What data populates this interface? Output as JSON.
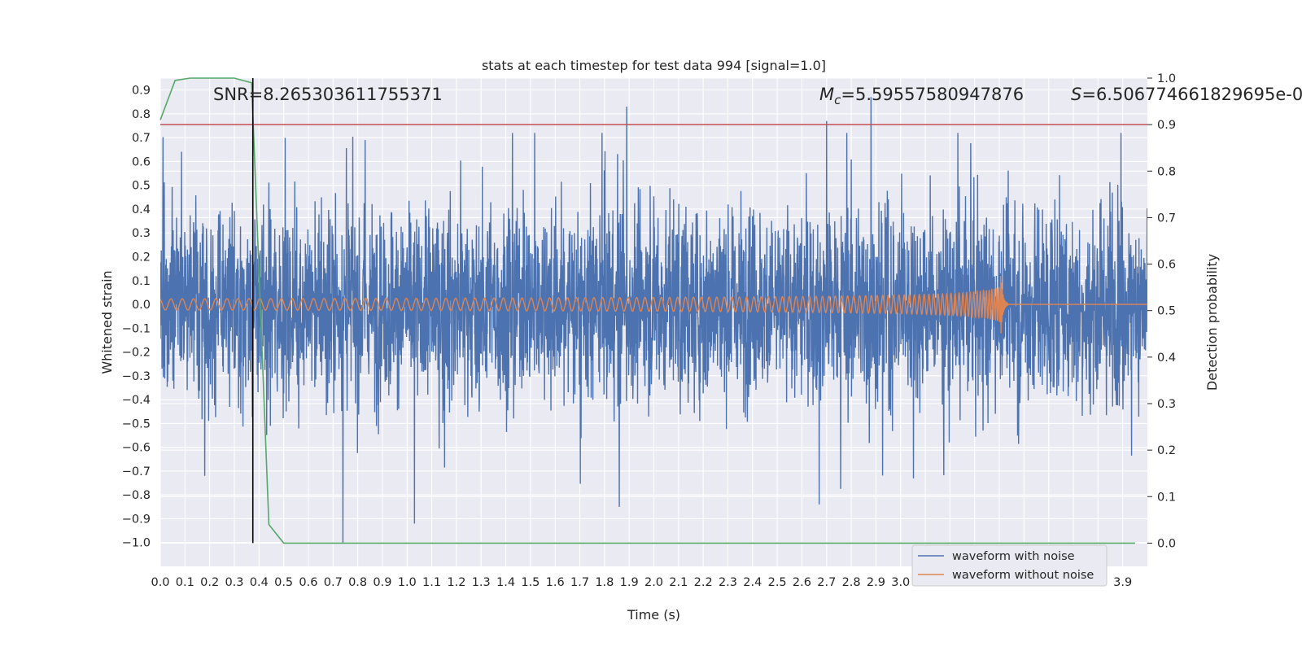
{
  "chart_data": {
    "type": "line",
    "title": "stats at each timestep for test data 994 [signal=1.0]",
    "xlabel": "Time (s)",
    "ylabel": "Whitened strain",
    "y2label": "Detection probability",
    "xlim": [
      0.0,
      4.0
    ],
    "ylim": [
      -1.1,
      0.95
    ],
    "y2lim": [
      -0.05,
      1.0
    ],
    "x_ticks": [
      "0.0",
      "0.1",
      "0.2",
      "0.3",
      "0.4",
      "0.5",
      "0.6",
      "0.7",
      "0.8",
      "0.9",
      "1.0",
      "1.1",
      "1.2",
      "1.3",
      "1.4",
      "1.5",
      "1.6",
      "1.7",
      "1.8",
      "1.9",
      "2.0",
      "2.1",
      "2.2",
      "2.3",
      "2.4",
      "2.5",
      "2.6",
      "2.7",
      "2.8",
      "2.9",
      "3.0",
      "3.1",
      "3.2",
      "3.3",
      "3.4",
      "3.5",
      "3.6",
      "3.7",
      "3.8",
      "3.9"
    ],
    "y_ticks": [
      "0.9",
      "0.8",
      "0.7",
      "0.6",
      "0.5",
      "0.4",
      "0.3",
      "0.2",
      "0.1",
      "0.0",
      "−0.1",
      "−0.2",
      "−0.3",
      "−0.4",
      "−0.5",
      "−0.6",
      "−0.7",
      "−0.8",
      "−0.9",
      "−1.0"
    ],
    "y2_ticks": [
      "1.0",
      "0.9",
      "0.8",
      "0.7",
      "0.6",
      "0.5",
      "0.4",
      "0.3",
      "0.2",
      "0.1",
      "0.0"
    ],
    "annotations": {
      "snr": "SNR=8.265303611755371",
      "mc_symbol": "M",
      "mc_sub": "c",
      "mc_value": "=5.59557580947876",
      "s_symbol": "S",
      "s_value": "=6.506774661829695e-0"
    },
    "legend": {
      "position": "lower-right",
      "entries": [
        "waveform with noise",
        "waveform without noise"
      ]
    },
    "colors": {
      "noisy": "#4c72b0",
      "clean": "#dd8452",
      "probability": "#55a868",
      "threshold": "#c44e52",
      "marker": "#000000",
      "background": "#eaeaf2",
      "grid": "#ffffff"
    },
    "threshold_probability": 0.9,
    "marker_time": 0.375,
    "series": [
      {
        "name": "waveform with noise",
        "notes": "noisy whitened strain, approx. symmetric noise between -0.6 and 0.6 with spikes",
        "spikes": [
          {
            "x": 0.74,
            "y": -1.0
          },
          {
            "x": 1.03,
            "y": -0.92
          },
          {
            "x": 1.89,
            "y": 0.83
          },
          {
            "x": 1.79,
            "y": 0.72
          },
          {
            "x": 2.88,
            "y": 0.87
          },
          {
            "x": 2.7,
            "y": 0.77
          },
          {
            "x": 2.67,
            "y": -0.84
          },
          {
            "x": 1.86,
            "y": -0.85
          },
          {
            "x": 0.18,
            "y": -0.72
          },
          {
            "x": 0.83,
            "y": 0.69
          }
        ]
      },
      {
        "name": "waveform without noise",
        "notes": "chirp signal, amplitude ~0.02 rising to ~0.17 at merger near 3.4 s, then ringdown to 0"
      },
      {
        "name": "detection probability",
        "x": [
          0.0,
          0.06,
          0.12,
          0.3,
          0.37,
          0.44,
          0.5,
          3.95
        ],
        "y": [
          0.91,
          0.995,
          1.0,
          1.0,
          0.99,
          0.04,
          0.0,
          0.0
        ]
      }
    ]
  }
}
